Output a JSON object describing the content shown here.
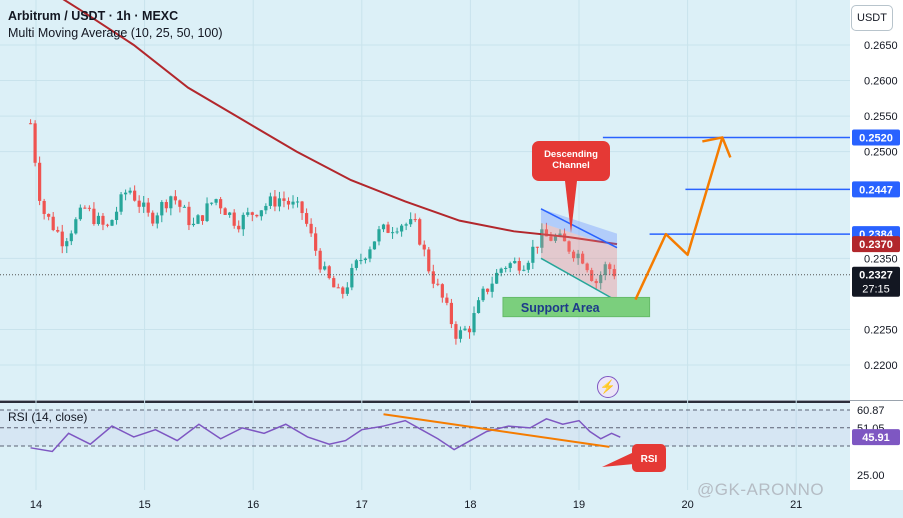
{
  "header": {
    "symbol_line": "Arbitrum / USDT · 1h · MEXC",
    "indicator_line": "Multi Moving Average (10, 25, 50, 100)"
  },
  "currency": "USDT",
  "watermark": "@GK-ARONNO",
  "colors": {
    "background": "#dcf0f7",
    "up": "#26a69a",
    "down": "#ef5350",
    "ma100": "#b2272c",
    "level_line": "#2962ff",
    "projection": "#f57c00",
    "rsi_line": "#7e57c2",
    "support": "#66bb6a",
    "callout": "#e53935"
  },
  "chart_data": [
    {
      "type": "candlestick",
      "ylim": [
        0.2185,
        0.2675
      ],
      "y_ticks": [
        "0.2650",
        "0.2600",
        "0.2550",
        "0.2500",
        "0.2350",
        "0.2250",
        "0.2200"
      ],
      "x_ticks": [
        "14",
        "15",
        "16",
        "17",
        "18",
        "19",
        "20",
        "21"
      ],
      "price_labels": [
        {
          "value": 0.252,
          "text": "0.2520",
          "color": "#2962ff"
        },
        {
          "value": 0.2447,
          "text": "0.2447",
          "color": "#2962ff"
        },
        {
          "value": 0.2384,
          "text": "0.2384",
          "color": "#2962ff"
        },
        {
          "value": 0.237,
          "text": "0.2370",
          "color": "#b2272c"
        },
        {
          "value": 0.2327,
          "text": "0.2327",
          "color": "#131722"
        }
      ],
      "countdown": "27:15",
      "horizontal_levels": [
        {
          "value": 0.252,
          "from_x": 19.22
        },
        {
          "value": 0.2447,
          "from_x": 19.98
        },
        {
          "value": 0.2384,
          "from_x": 19.65
        }
      ],
      "annotations": {
        "descending_channel_label": "Descending\nChannel",
        "support_label": "Support Area",
        "rsi_label": "RSI"
      },
      "projection_path": [
        {
          "x": 19.52,
          "y": 0.2292
        },
        {
          "x": 19.8,
          "y": 0.2384
        },
        {
          "x": 20.0,
          "y": 0.2355
        },
        {
          "x": 20.32,
          "y": 0.252
        }
      ],
      "moving_average_100": [
        {
          "x": 13.88,
          "y": 0.275
        },
        {
          "x": 14.4,
          "y": 0.27
        },
        {
          "x": 14.9,
          "y": 0.265
        },
        {
          "x": 15.4,
          "y": 0.259
        },
        {
          "x": 15.9,
          "y": 0.2545
        },
        {
          "x": 16.4,
          "y": 0.25
        },
        {
          "x": 16.9,
          "y": 0.246
        },
        {
          "x": 17.4,
          "y": 0.243
        },
        {
          "x": 17.9,
          "y": 0.2403
        },
        {
          "x": 18.4,
          "y": 0.2388
        },
        {
          "x": 18.9,
          "y": 0.238
        },
        {
          "x": 19.35,
          "y": 0.237
        }
      ],
      "ohlc_anchor_closes": [
        {
          "x": 13.95,
          "y": 0.254
        },
        {
          "x": 14.05,
          "y": 0.242
        },
        {
          "x": 14.25,
          "y": 0.2375
        },
        {
          "x": 14.45,
          "y": 0.242
        },
        {
          "x": 14.65,
          "y": 0.239
        },
        {
          "x": 14.85,
          "y": 0.245
        },
        {
          "x": 15.05,
          "y": 0.2405
        },
        {
          "x": 15.25,
          "y": 0.244
        },
        {
          "x": 15.45,
          "y": 0.2395
        },
        {
          "x": 15.65,
          "y": 0.2435
        },
        {
          "x": 15.85,
          "y": 0.24
        },
        {
          "x": 16.05,
          "y": 0.242
        },
        {
          "x": 16.25,
          "y": 0.2435
        },
        {
          "x": 16.45,
          "y": 0.2415
        },
        {
          "x": 16.65,
          "y": 0.233
        },
        {
          "x": 16.8,
          "y": 0.2295
        },
        {
          "x": 16.95,
          "y": 0.234
        },
        {
          "x": 17.15,
          "y": 0.2385
        },
        {
          "x": 17.35,
          "y": 0.24
        },
        {
          "x": 17.5,
          "y": 0.2395
        },
        {
          "x": 17.62,
          "y": 0.2335
        },
        {
          "x": 17.75,
          "y": 0.229
        },
        {
          "x": 17.88,
          "y": 0.224
        },
        {
          "x": 18.0,
          "y": 0.2255
        },
        {
          "x": 18.12,
          "y": 0.23
        },
        {
          "x": 18.3,
          "y": 0.234
        },
        {
          "x": 18.5,
          "y": 0.2345
        },
        {
          "x": 18.65,
          "y": 0.238
        },
        {
          "x": 18.8,
          "y": 0.2378
        },
        {
          "x": 18.95,
          "y": 0.236
        },
        {
          "x": 19.05,
          "y": 0.235
        },
        {
          "x": 19.15,
          "y": 0.2315
        },
        {
          "x": 19.25,
          "y": 0.234
        },
        {
          "x": 19.35,
          "y": 0.2327
        }
      ],
      "channel_upper": [
        {
          "x": 18.65,
          "y": 0.24
        },
        {
          "x": 19.35,
          "y": 0.2365
        }
      ],
      "channel_lower": [
        {
          "x": 18.65,
          "y": 0.235
        },
        {
          "x": 19.35,
          "y": 0.229
        }
      ],
      "support_zone": {
        "x_from": 18.3,
        "x_to": 19.65,
        "y_from": 0.2268,
        "y_to": 0.2295
      }
    },
    {
      "type": "line",
      "title": "RSI (14, close)",
      "y_ticks": [
        "60.87",
        "51.05",
        "25.00"
      ],
      "value_label": "45.91",
      "levels": [
        60.87,
        51.05,
        41.0
      ],
      "ylim": [
        20,
        66
      ],
      "rsi_trendline": [
        {
          "x": 17.2,
          "y": 58.5
        },
        {
          "x": 19.28,
          "y": 40.5
        }
      ],
      "rsi_values": [
        {
          "x": 13.95,
          "y": 40
        },
        {
          "x": 14.15,
          "y": 38
        },
        {
          "x": 14.3,
          "y": 48
        },
        {
          "x": 14.5,
          "y": 42
        },
        {
          "x": 14.7,
          "y": 52
        },
        {
          "x": 14.9,
          "y": 46
        },
        {
          "x": 15.1,
          "y": 50
        },
        {
          "x": 15.3,
          "y": 44
        },
        {
          "x": 15.5,
          "y": 53
        },
        {
          "x": 15.7,
          "y": 45
        },
        {
          "x": 15.9,
          "y": 51
        },
        {
          "x": 16.1,
          "y": 48
        },
        {
          "x": 16.3,
          "y": 53
        },
        {
          "x": 16.5,
          "y": 46
        },
        {
          "x": 16.7,
          "y": 42
        },
        {
          "x": 16.85,
          "y": 44
        },
        {
          "x": 17.0,
          "y": 50
        },
        {
          "x": 17.2,
          "y": 52
        },
        {
          "x": 17.4,
          "y": 55
        },
        {
          "x": 17.55,
          "y": 50
        },
        {
          "x": 17.7,
          "y": 45
        },
        {
          "x": 17.85,
          "y": 39
        },
        {
          "x": 18.0,
          "y": 44
        },
        {
          "x": 18.15,
          "y": 49
        },
        {
          "x": 18.35,
          "y": 52
        },
        {
          "x": 18.55,
          "y": 51
        },
        {
          "x": 18.7,
          "y": 56
        },
        {
          "x": 18.85,
          "y": 53
        },
        {
          "x": 19.0,
          "y": 55
        },
        {
          "x": 19.1,
          "y": 49
        },
        {
          "x": 19.2,
          "y": 45
        },
        {
          "x": 19.3,
          "y": 48
        },
        {
          "x": 19.38,
          "y": 45.9
        }
      ]
    }
  ]
}
